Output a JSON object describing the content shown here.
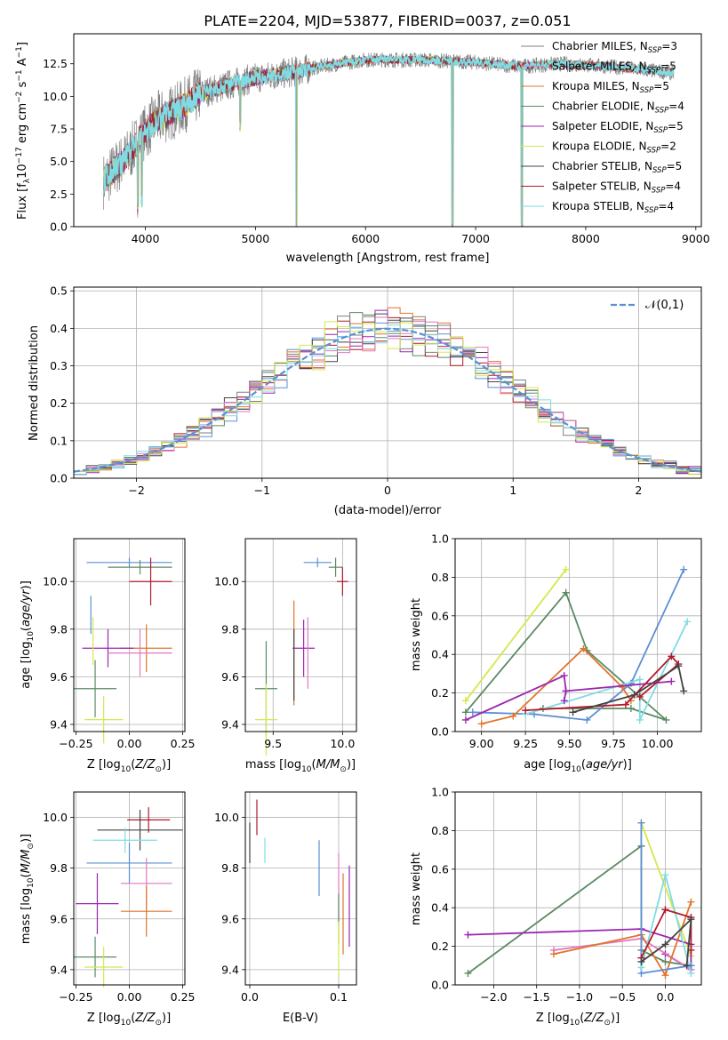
{
  "figure_title": "PLATE=2204, MJD=53877, FIBERID=0037, z=0.051",
  "models": [
    {
      "label": "Chabrier MILES, N",
      "sub": "SSP",
      "tail": "=3",
      "color": "#7f7f7f"
    },
    {
      "label": "Salpeter MILES, N",
      "sub": "SSP",
      "tail": "=5",
      "color": "#e377c2"
    },
    {
      "label": "Kroupa MILES, N",
      "sub": "SSP",
      "tail": "=5",
      "color": "#e0752b"
    },
    {
      "label": "Chabrier ELODIE, N",
      "sub": "SSP",
      "tail": "=4",
      "color": "#5a8a64"
    },
    {
      "label": "Salpeter ELODIE, N",
      "sub": "SSP",
      "tail": "=5",
      "color": "#9b27b0"
    },
    {
      "label": "Kroupa ELODIE, N",
      "sub": "SSP",
      "tail": "=2",
      "color": "#d4e84a"
    },
    {
      "label": "Chabrier STELIB, N",
      "sub": "SSP",
      "tail": "=5",
      "color": "#444444"
    },
    {
      "label": "Salpeter STELIB, N",
      "sub": "SSP",
      "tail": "=4",
      "color": "#b2182b"
    },
    {
      "label": "Kroupa STELIB, N",
      "sub": "SSP",
      "tail": "=4",
      "color": "#80dbe3"
    }
  ],
  "chart_data": [
    {
      "id": "spectrum",
      "type": "line",
      "title": "PLATE=2204, MJD=53877, FIBERID=0037, z=0.051",
      "xlabel": "wavelength [Angstrom, rest frame]",
      "ylabel": "Flux [f_λ 10^-17 erg cm^-2 s^-1 A^-1]",
      "xlim": [
        3350,
        9050
      ],
      "ylim": [
        0,
        14.8
      ],
      "xticks": [
        4000,
        5000,
        6000,
        7000,
        8000,
        9000
      ],
      "yticks": [
        0.0,
        2.5,
        5.0,
        7.5,
        10.0,
        12.5
      ],
      "data_range": [
        3620,
        8800
      ],
      "continuum": [
        [
          3620,
          3.5
        ],
        [
          3700,
          4.2
        ],
        [
          3850,
          5.5
        ],
        [
          3950,
          6.8
        ],
        [
          4100,
          8.2
        ],
        [
          4300,
          9.0
        ],
        [
          4500,
          10.2
        ],
        [
          4800,
          11.0
        ],
        [
          5000,
          11.4
        ],
        [
          5300,
          11.8
        ],
        [
          5600,
          12.3
        ],
        [
          6000,
          12.8
        ],
        [
          6500,
          12.8
        ],
        [
          7000,
          12.6
        ],
        [
          7400,
          12.3
        ],
        [
          7800,
          12.5
        ],
        [
          8200,
          12.3
        ],
        [
          8800,
          11.8
        ]
      ],
      "dips": [
        [
          3933,
          5.0
        ],
        [
          3968,
          4.6
        ],
        [
          4861,
          3.2
        ],
        [
          5373,
          12.5
        ],
        [
          6790,
          12.5
        ],
        [
          7420,
          12.3
        ]
      ],
      "legend_position": "upper right"
    },
    {
      "id": "residuals",
      "type": "line",
      "xlabel": "(data-model)/error",
      "ylabel": "Normed distribution",
      "xlim": [
        -2.5,
        2.5
      ],
      "ylim": [
        0,
        0.51
      ],
      "xticks": [
        -2,
        -1,
        0,
        1,
        2
      ],
      "yticks": [
        0.0,
        0.1,
        0.2,
        0.3,
        0.4,
        0.5
      ],
      "grid": true,
      "bin_width": 0.1,
      "normal_curve": {
        "label": "𝒩(0,1)",
        "mean": 0,
        "sigma": 1,
        "color": "#5b8fd6"
      },
      "histogram_colors": [
        "#5b8fd6",
        "#e0752b",
        "#5a8a64",
        "#b2182b",
        "#9b27b0",
        "#444444",
        "#e377c2",
        "#7f7f7f",
        "#d4e84a",
        "#80dbe3"
      ],
      "legend_position": "upper right"
    },
    {
      "id": "age_vs_Z",
      "type": "scatter",
      "xlabel": "Z [log10(Z/Z⊙)]",
      "ylabel": "age [log10(age/yr)]",
      "xlim": [
        -0.26,
        0.26
      ],
      "ylim": [
        9.37,
        10.18
      ],
      "xticks": [
        -0.25,
        0.0,
        0.25
      ],
      "yticks": [
        9.4,
        9.6,
        9.8,
        10.0
      ],
      "points": [
        {
          "x": 0.0,
          "y": 10.08,
          "xerr": 0.2,
          "yerr": 0.02,
          "color": "#5b8fd6"
        },
        {
          "x": 0.05,
          "y": 10.06,
          "xerr": 0.15,
          "yerr": 0.03,
          "color": "#5a8a64"
        },
        {
          "x": 0.1,
          "y": 10.0,
          "xerr": 0.1,
          "yerr": 0.1,
          "color": "#b2182b"
        },
        {
          "x": -0.18,
          "y": 9.86,
          "xerr": 0.0,
          "yerr": 0.08,
          "color": "#5b8fd6"
        },
        {
          "x": 0.08,
          "y": 9.72,
          "xerr": 0.12,
          "yerr": 0.1,
          "color": "#e0752b"
        },
        {
          "x": -0.1,
          "y": 9.72,
          "xerr": 0.12,
          "yerr": 0.08,
          "color": "#9b27b0"
        },
        {
          "x": 0.05,
          "y": 9.7,
          "xerr": 0.15,
          "yerr": 0.1,
          "color": "#e377c2"
        },
        {
          "x": -0.16,
          "y": 9.55,
          "xerr": 0.1,
          "yerr": 0.12,
          "color": "#5a8a64"
        },
        {
          "x": -0.12,
          "y": 9.42,
          "xerr": 0.09,
          "yerr": 0.1,
          "color": "#d4e84a"
        },
        {
          "x": -0.17,
          "y": 9.75,
          "xerr": 0.0,
          "yerr": 0.1,
          "color": "#d4e84a"
        }
      ]
    },
    {
      "id": "age_vs_mass",
      "type": "scatter",
      "xlabel": "mass [log10(M/M⊙)]",
      "ylabel": "",
      "xlim": [
        9.3,
        10.1
      ],
      "ylim": [
        9.37,
        10.18
      ],
      "xticks": [
        9.5,
        10.0
      ],
      "yticks": [
        9.4,
        9.6,
        9.8,
        10.0
      ],
      "points": [
        {
          "x": 9.82,
          "y": 10.08,
          "xerr": 0.1,
          "yerr": 0.02,
          "color": "#5b8fd6"
        },
        {
          "x": 9.95,
          "y": 10.06,
          "xerr": 0.05,
          "yerr": 0.04,
          "color": "#5a8a64"
        },
        {
          "x": 10.0,
          "y": 10.0,
          "xerr": 0.04,
          "yerr": 0.06,
          "color": "#b2182b"
        },
        {
          "x": 9.72,
          "y": 9.72,
          "xerr": 0.08,
          "yerr": 0.12,
          "color": "#9b27b0"
        },
        {
          "x": 9.65,
          "y": 9.7,
          "xerr": 0.0,
          "yerr": 0.22,
          "color": "#e0752b"
        },
        {
          "x": 9.75,
          "y": 9.7,
          "xerr": 0.0,
          "yerr": 0.15,
          "color": "#e377c2"
        },
        {
          "x": 9.45,
          "y": 9.55,
          "xerr": 0.08,
          "yerr": 0.2,
          "color": "#5a8a64"
        },
        {
          "x": 9.45,
          "y": 9.42,
          "xerr": 0.08,
          "yerr": 0.15,
          "color": "#d4e84a"
        },
        {
          "x": 9.65,
          "y": 9.65,
          "xerr": 0.0,
          "yerr": 0.15,
          "color": "#444444"
        }
      ]
    },
    {
      "id": "weight_vs_age",
      "type": "line",
      "xlabel": "age [log10(age/yr)]",
      "ylabel": "mass weight",
      "xlim": [
        8.85,
        10.25
      ],
      "ylim": [
        0,
        1.0
      ],
      "xticks": [
        9.0,
        9.25,
        9.5,
        9.75,
        10.0
      ],
      "yticks": [
        0.0,
        0.2,
        0.4,
        0.6,
        0.8,
        1.0
      ],
      "grid": true,
      "series": [
        {
          "color": "#d4e84a",
          "x": [
            8.91,
            9.48
          ],
          "y": [
            0.16,
            0.84
          ]
        },
        {
          "color": "#5a8a64",
          "x": [
            8.91,
            9.48,
            9.6,
            10.05,
            9.85,
            9.35
          ],
          "y": [
            0.1,
            0.72,
            0.42,
            0.06,
            0.12,
            0.12
          ]
        },
        {
          "color": "#5b8fd6",
          "x": [
            8.95,
            9.3,
            9.6,
            9.85,
            10.15
          ],
          "y": [
            0.1,
            0.09,
            0.06,
            0.25,
            0.84
          ]
        },
        {
          "color": "#80dbe3",
          "x": [
            9.25,
            9.9,
            9.9,
            10.17
          ],
          "y": [
            0.09,
            0.27,
            0.06,
            0.57
          ]
        },
        {
          "color": "#e0752b",
          "x": [
            9.0,
            9.18,
            9.58,
            9.8,
            9.85
          ],
          "y": [
            0.04,
            0.08,
            0.43,
            0.23,
            0.16
          ]
        },
        {
          "color": "#9b27b0",
          "x": [
            8.91,
            9.47,
            9.48,
            10.08,
            9.48,
            9.47
          ],
          "y": [
            0.06,
            0.29,
            0.21,
            0.26,
            0.21,
            0.16
          ]
        },
        {
          "color": "#b2182b",
          "x": [
            9.25,
            9.82,
            10.08,
            10.12,
            9.9
          ],
          "y": [
            0.11,
            0.14,
            0.39,
            0.35,
            0.18
          ]
        },
        {
          "color": "#444444",
          "x": [
            9.52,
            9.87,
            10.12,
            10.15
          ],
          "y": [
            0.1,
            0.19,
            0.34,
            0.21
          ]
        }
      ]
    },
    {
      "id": "mass_vs_Z",
      "type": "scatter",
      "xlabel": "Z [log10(Z/Z⊙)]",
      "ylabel": "mass [log10(M/M⊙)]",
      "xlim": [
        -0.26,
        0.26
      ],
      "ylim": [
        9.34,
        10.1
      ],
      "xticks": [
        -0.25,
        0.0,
        0.25
      ],
      "yticks": [
        9.4,
        9.6,
        9.8,
        10.0
      ],
      "points": [
        {
          "x": 0.09,
          "y": 9.99,
          "xerr": 0.1,
          "yerr": 0.05,
          "color": "#b2182b"
        },
        {
          "x": 0.05,
          "y": 9.95,
          "xerr": 0.2,
          "yerr": 0.08,
          "color": "#444444"
        },
        {
          "x": -0.02,
          "y": 9.91,
          "xerr": 0.15,
          "yerr": 0.05,
          "color": "#80dbe3"
        },
        {
          "x": 0.0,
          "y": 9.82,
          "xerr": 0.2,
          "yerr": 0.08,
          "color": "#5b8fd6"
        },
        {
          "x": 0.08,
          "y": 9.74,
          "xerr": 0.12,
          "yerr": 0.1,
          "color": "#e377c2"
        },
        {
          "x": -0.15,
          "y": 9.66,
          "xerr": 0.1,
          "yerr": 0.12,
          "color": "#9b27b0"
        },
        {
          "x": 0.08,
          "y": 9.63,
          "xerr": 0.12,
          "yerr": 0.1,
          "color": "#e0752b"
        },
        {
          "x": -0.16,
          "y": 9.45,
          "xerr": 0.1,
          "yerr": 0.08,
          "color": "#5a8a64"
        },
        {
          "x": -0.12,
          "y": 9.41,
          "xerr": 0.09,
          "yerr": 0.08,
          "color": "#d4e84a"
        }
      ]
    },
    {
      "id": "mass_vs_EBV",
      "type": "scatter",
      "xlabel": "E(B-V)",
      "ylabel": "",
      "xlim": [
        -0.005,
        0.12
      ],
      "ylim": [
        9.34,
        10.1
      ],
      "xticks": [
        0.0,
        0.1
      ],
      "yticks": [
        9.4,
        9.6,
        9.8,
        10.0
      ],
      "points": [
        {
          "x": 0.008,
          "y": 10.0,
          "yerr": 0.07,
          "color": "#b2182b"
        },
        {
          "x": 0.0,
          "y": 9.9,
          "yerr": 0.08,
          "color": "#444444"
        },
        {
          "x": 0.017,
          "y": 9.87,
          "yerr": 0.05,
          "color": "#80dbe3"
        },
        {
          "x": 0.078,
          "y": 9.8,
          "yerr": 0.11,
          "color": "#5b8fd6"
        },
        {
          "x": 0.1,
          "y": 9.72,
          "yerr": 0.14,
          "color": "#e377c2"
        },
        {
          "x": 0.105,
          "y": 9.62,
          "yerr": 0.16,
          "color": "#e0752b"
        },
        {
          "x": 0.1,
          "y": 9.6,
          "yerr": 0.1,
          "color": "#5a8a64"
        },
        {
          "x": 0.112,
          "y": 9.65,
          "yerr": 0.16,
          "color": "#9b27b0"
        },
        {
          "x": 0.1,
          "y": 9.48,
          "yerr": 0.11,
          "color": "#d4e84a"
        }
      ]
    },
    {
      "id": "weight_vs_Z",
      "type": "line",
      "xlabel": "Z [log10(Z/Z⊙)]",
      "ylabel": "mass weight",
      "xlim": [
        -2.45,
        0.42
      ],
      "ylim": [
        0,
        1.0
      ],
      "xticks": [
        -2.0,
        -1.5,
        -1.0,
        -0.5,
        0.0
      ],
      "yticks": [
        0.0,
        0.2,
        0.4,
        0.6,
        0.8,
        1.0
      ],
      "grid": true,
      "series": [
        {
          "color": "#5a8a64",
          "x": [
            -2.3,
            -0.28,
            -0.28,
            0.0,
            0.3
          ],
          "y": [
            0.06,
            0.72,
            0.18,
            0.12,
            0.1
          ]
        },
        {
          "color": "#d4e84a",
          "x": [
            -0.28,
            0.3
          ],
          "y": [
            0.84,
            0.15
          ]
        },
        {
          "color": "#9b27b0",
          "x": [
            -2.3,
            -0.28,
            0.3,
            0.3,
            0.0
          ],
          "y": [
            0.26,
            0.29,
            0.21,
            0.08,
            0.16
          ]
        },
        {
          "color": "#e377c2",
          "x": [
            -1.3,
            -0.28,
            0.3
          ],
          "y": [
            0.18,
            0.24,
            0.08
          ]
        },
        {
          "color": "#e0752b",
          "x": [
            -1.3,
            -0.28,
            0.0,
            0.3
          ],
          "y": [
            0.16,
            0.26,
            0.05,
            0.43
          ]
        },
        {
          "color": "#5b8fd6",
          "x": [
            -0.28,
            -0.28,
            0.3
          ],
          "y": [
            0.84,
            0.06,
            0.1
          ]
        },
        {
          "color": "#80dbe3",
          "x": [
            -0.28,
            0.0,
            0.3
          ],
          "y": [
            0.09,
            0.57,
            0.06
          ]
        },
        {
          "color": "#b2182b",
          "x": [
            -0.28,
            0.0,
            0.3,
            0.3
          ],
          "y": [
            0.14,
            0.39,
            0.35,
            0.18
          ]
        },
        {
          "color": "#444444",
          "x": [
            -0.28,
            0.0,
            0.3,
            0.25
          ],
          "y": [
            0.12,
            0.21,
            0.34,
            0.1
          ]
        }
      ]
    }
  ]
}
